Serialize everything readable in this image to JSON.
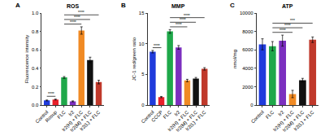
{
  "chart_data": [
    {
      "type": "bar",
      "panel": "A",
      "title": "ROS",
      "y_label": "Fluorescence intensity",
      "categories": [
        "Control",
        "Rosup",
        "FLC",
        "Ir2",
        "Ir2(H) + FLC",
        "Ir2(M) + FLC",
        "Ir2(L) + FLC"
      ],
      "values": [
        0.05,
        0.06,
        0.3,
        0.04,
        0.81,
        0.49,
        0.25
      ],
      "errors": [
        0.005,
        0.005,
        0.01,
        0.005,
        0.04,
        0.03,
        0.02
      ],
      "colors": [
        "#1f3bdc",
        "#e8202a",
        "#1fa84a",
        "#7b2fbf",
        "#f08a24",
        "#111111",
        "#c0392b"
      ],
      "ylim": [
        0,
        1.0
      ],
      "yticks": [
        {
          "value": 0,
          "label": "0.0"
        },
        0.2,
        0.4,
        0.6,
        0.8,
        {
          "value": 1.0,
          "label": "1.0"
        }
      ],
      "comparisons": [
        {
          "from": 0,
          "to": 1,
          "label": "****"
        },
        {
          "from": 2,
          "to": 4,
          "label": "****"
        },
        {
          "from": 2,
          "to": 5,
          "label": "****"
        },
        {
          "from": 2,
          "to": 6,
          "label": "****"
        }
      ]
    },
    {
      "type": "bar",
      "panel": "B",
      "title": "MMP",
      "y_label": "JC-1 red/green ratio",
      "categories": [
        "Control",
        "CCCP",
        "FLC",
        "Ir2",
        "Ir2(H) + FLC",
        "Ir2(M) + FLC",
        "Ir2(L) + FLC"
      ],
      "values": [
        8.7,
        1.3,
        12.0,
        9.4,
        4.0,
        4.3,
        5.9
      ],
      "errors": [
        0.2,
        0.1,
        0.3,
        0.3,
        0.2,
        0.2,
        0.2
      ],
      "colors": [
        "#1f3bdc",
        "#e8202a",
        "#1fa84a",
        "#7b2fbf",
        "#f08a24",
        "#111111",
        "#c0392b"
      ],
      "ylim": [
        0,
        15
      ],
      "yticks": [
        0,
        5,
        10,
        15
      ],
      "comparisons": [
        {
          "from": 0,
          "to": 1,
          "label": "****"
        },
        {
          "from": 2,
          "to": 4,
          "label": "****"
        },
        {
          "from": 2,
          "to": 5,
          "label": "****"
        },
        {
          "from": 2,
          "to": 6,
          "label": "****"
        }
      ]
    },
    {
      "type": "bar",
      "panel": "C",
      "title": "ATP",
      "y_label": "nmol/mg",
      "categories": [
        "Control",
        "FLC",
        "Ir2",
        "Ir2(H) + FLC",
        "Ir2(M) + FLC",
        "Ir2(L) + FLC"
      ],
      "values": [
        6600,
        6400,
        7000,
        1200,
        2700,
        7100
      ],
      "errors": [
        600,
        500,
        600,
        400,
        200,
        300
      ],
      "colors": [
        "#1f3bdc",
        "#1fa84a",
        "#7b2fbf",
        "#f08a24",
        "#111111",
        "#c0392b"
      ],
      "ylim": [
        0,
        10000
      ],
      "yticks": [
        0,
        2000,
        4000,
        6000,
        8000,
        10000
      ],
      "comparisons": [
        {
          "from": 1,
          "to": 3,
          "label": "****"
        },
        {
          "from": 1,
          "to": 4,
          "label": "****"
        },
        {
          "from": 1,
          "to": 5,
          "label": "***"
        }
      ]
    }
  ]
}
